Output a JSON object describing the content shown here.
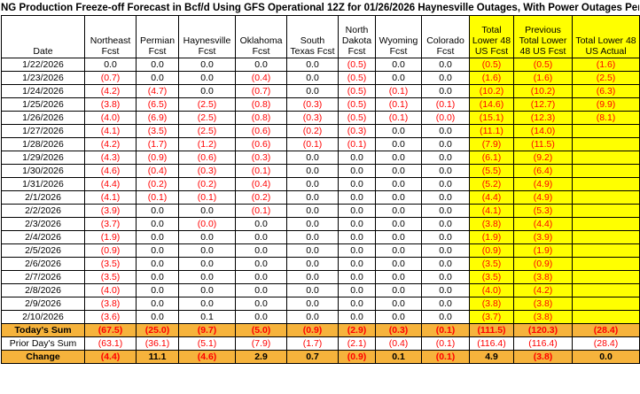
{
  "title": "NG Production Freeze-off Forecast in Bcf/d Using GFS Operational 12Z for 01/26/2026 Haynesville Outages, With Power Outages Perm/NE",
  "colors": {
    "negative": "#ff0000",
    "highlight": "#ffff00",
    "summary": "#f6b33c"
  },
  "columns": [
    {
      "label": "Date"
    },
    {
      "label": "Northeast Fcst"
    },
    {
      "label": "Permian Fcst"
    },
    {
      "label": "Haynesville Fcst"
    },
    {
      "label": "Oklahoma Fcst"
    },
    {
      "label": "South Texas Fcst"
    },
    {
      "label": "North Dakota Fcst"
    },
    {
      "label": "Wyoming Fcst"
    },
    {
      "label": "Colorado Fcst"
    },
    {
      "label": "Total Lower 48 US Fcst"
    },
    {
      "label": "Previous Total Lower 48 US Fcst"
    },
    {
      "label": "Total Lower 48 US Actual"
    }
  ],
  "rows": [
    {
      "date": "1/22/2026",
      "values": [
        "0.0",
        "0.0",
        "0.0",
        "0.0",
        "0.0",
        "(0.5)",
        "0.0",
        "0.0",
        "(0.5)",
        "(0.5)",
        "(1.6)"
      ]
    },
    {
      "date": "1/23/2026",
      "values": [
        "(0.7)",
        "0.0",
        "0.0",
        "(0.4)",
        "0.0",
        "(0.5)",
        "0.0",
        "0.0",
        "(1.6)",
        "(1.6)",
        "(2.5)"
      ]
    },
    {
      "date": "1/24/2026",
      "values": [
        "(4.2)",
        "(4.7)",
        "0.0",
        "(0.7)",
        "0.0",
        "(0.5)",
        "(0.1)",
        "0.0",
        "(10.2)",
        "(10.2)",
        "(6.3)"
      ]
    },
    {
      "date": "1/25/2026",
      "values": [
        "(3.8)",
        "(6.5)",
        "(2.5)",
        "(0.8)",
        "(0.3)",
        "(0.5)",
        "(0.1)",
        "(0.1)",
        "(14.6)",
        "(12.7)",
        "(9.9)"
      ]
    },
    {
      "date": "1/26/2026",
      "values": [
        "(4.0)",
        "(6.9)",
        "(2.5)",
        "(0.8)",
        "(0.3)",
        "(0.5)",
        "(0.1)",
        "(0.0)",
        "(15.1)",
        "(12.3)",
        "(8.1)"
      ]
    },
    {
      "date": "1/27/2026",
      "values": [
        "(4.1)",
        "(3.5)",
        "(2.5)",
        "(0.6)",
        "(0.2)",
        "(0.3)",
        "0.0",
        "0.0",
        "(11.1)",
        "(14.0)",
        ""
      ]
    },
    {
      "date": "1/28/2026",
      "values": [
        "(4.2)",
        "(1.7)",
        "(1.2)",
        "(0.6)",
        "(0.1)",
        "(0.1)",
        "0.0",
        "0.0",
        "(7.9)",
        "(11.5)",
        ""
      ]
    },
    {
      "date": "1/29/2026",
      "values": [
        "(4.3)",
        "(0.9)",
        "(0.6)",
        "(0.3)",
        "0.0",
        "0.0",
        "0.0",
        "0.0",
        "(6.1)",
        "(9.2)",
        ""
      ]
    },
    {
      "date": "1/30/2026",
      "values": [
        "(4.6)",
        "(0.4)",
        "(0.3)",
        "(0.1)",
        "0.0",
        "0.0",
        "0.0",
        "0.0",
        "(5.5)",
        "(6.4)",
        ""
      ]
    },
    {
      "date": "1/31/2026",
      "values": [
        "(4.4)",
        "(0.2)",
        "(0.2)",
        "(0.4)",
        "0.0",
        "0.0",
        "0.0",
        "0.0",
        "(5.2)",
        "(4.9)",
        ""
      ]
    },
    {
      "date": "2/1/2026",
      "values": [
        "(4.1)",
        "(0.1)",
        "(0.1)",
        "(0.2)",
        "0.0",
        "0.0",
        "0.0",
        "0.0",
        "(4.4)",
        "(4.9)",
        ""
      ]
    },
    {
      "date": "2/2/2026",
      "values": [
        "(3.9)",
        "0.0",
        "0.0",
        "(0.1)",
        "0.0",
        "0.0",
        "0.0",
        "0.0",
        "(4.1)",
        "(5.3)",
        ""
      ]
    },
    {
      "date": "2/3/2026",
      "values": [
        "(3.7)",
        "0.0",
        "(0.0)",
        "0.0",
        "0.0",
        "0.0",
        "0.0",
        "0.0",
        "(3.8)",
        "(4.4)",
        ""
      ]
    },
    {
      "date": "2/4/2026",
      "values": [
        "(1.9)",
        "0.0",
        "0.0",
        "0.0",
        "0.0",
        "0.0",
        "0.0",
        "0.0",
        "(1.9)",
        "(3.9)",
        ""
      ]
    },
    {
      "date": "2/5/2026",
      "values": [
        "(0.9)",
        "0.0",
        "0.0",
        "0.0",
        "0.0",
        "0.0",
        "0.0",
        "0.0",
        "(0.9)",
        "(1.9)",
        ""
      ]
    },
    {
      "date": "2/6/2026",
      "values": [
        "(3.5)",
        "0.0",
        "0.0",
        "0.0",
        "0.0",
        "0.0",
        "0.0",
        "0.0",
        "(3.5)",
        "(0.9)",
        ""
      ]
    },
    {
      "date": "2/7/2026",
      "values": [
        "(3.5)",
        "0.0",
        "0.0",
        "0.0",
        "0.0",
        "0.0",
        "0.0",
        "0.0",
        "(3.5)",
        "(3.8)",
        ""
      ]
    },
    {
      "date": "2/8/2026",
      "values": [
        "(4.0)",
        "0.0",
        "0.0",
        "0.0",
        "0.0",
        "0.0",
        "0.0",
        "0.0",
        "(4.0)",
        "(4.2)",
        ""
      ]
    },
    {
      "date": "2/9/2026",
      "values": [
        "(3.8)",
        "0.0",
        "0.0",
        "0.0",
        "0.0",
        "0.0",
        "0.0",
        "0.0",
        "(3.8)",
        "(3.8)",
        ""
      ]
    },
    {
      "date": "2/10/2026",
      "values": [
        "(3.6)",
        "0.0",
        "0.1",
        "0.0",
        "0.0",
        "0.0",
        "0.0",
        "0.0",
        "(3.7)",
        "(3.8)",
        ""
      ]
    }
  ],
  "summary": {
    "todays_sum": {
      "label": "Today's Sum",
      "values": [
        "(67.5)",
        "(25.0)",
        "(9.7)",
        "(5.0)",
        "(0.9)",
        "(2.9)",
        "(0.3)",
        "(0.1)",
        "(111.5)",
        "(120.3)",
        "(28.4)"
      ]
    },
    "prior_days_sum": {
      "label": "Prior Day's Sum",
      "values": [
        "(63.1)",
        "(36.1)",
        "(5.1)",
        "(7.9)",
        "(1.7)",
        "(2.1)",
        "(0.4)",
        "(0.1)",
        "(116.4)",
        "(116.4)",
        "(28.4)"
      ]
    },
    "change": {
      "label": "Change",
      "values": [
        "(4.4)",
        "11.1",
        "(4.6)",
        "2.9",
        "0.7",
        "(0.9)",
        "0.1",
        "(0.1)",
        "4.9",
        "(3.8)",
        "0.0"
      ]
    }
  }
}
